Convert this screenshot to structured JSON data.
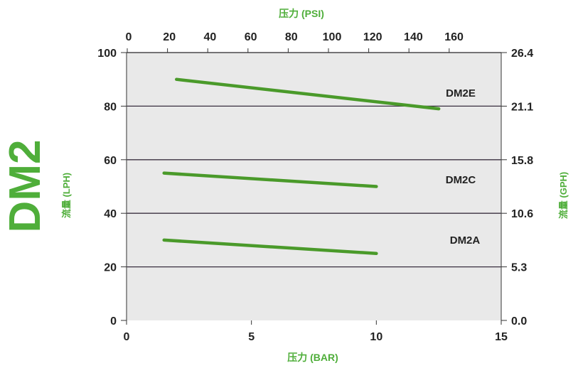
{
  "chart_data": {
    "type": "line",
    "title": "DM2",
    "xlabel": "压力 (BAR)",
    "x2label": "压力 (PSI)",
    "ylabel": "流量 (LPH)",
    "y2label": "流量 (GPH)",
    "xlim": [
      0,
      15
    ],
    "ylim": [
      0,
      100
    ],
    "x_ticks": [
      "0",
      "5",
      "10",
      "15"
    ],
    "x_tick_values": [
      0,
      5,
      10,
      15
    ],
    "x2_ticks": [
      "0",
      "20",
      "40",
      "60",
      "80",
      "100",
      "120",
      "140",
      "160"
    ],
    "y_ticks": [
      "0",
      "20",
      "40",
      "60",
      "80",
      "100"
    ],
    "y_tick_values": [
      0,
      20,
      40,
      60,
      80,
      100
    ],
    "y2_ticks": [
      "0.0",
      "5.3",
      "10.6",
      "15.8",
      "21.1",
      "26.4"
    ],
    "grid": "horizontal",
    "series": [
      {
        "name": "DM2E",
        "x": [
          2,
          12.5
        ],
        "y": [
          90,
          79
        ]
      },
      {
        "name": "DM2C",
        "x": [
          1.5,
          10
        ],
        "y": [
          55,
          50
        ]
      },
      {
        "name": "DM2A",
        "x": [
          1.5,
          10
        ],
        "y": [
          30,
          25
        ]
      }
    ],
    "colors": {
      "line": "#4a9a2a",
      "accent": "#4fae3a",
      "grid": "#3a3040",
      "plot_bg": "#e9e9e9"
    }
  }
}
